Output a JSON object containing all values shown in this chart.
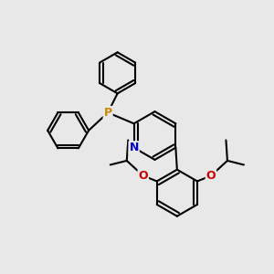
{
  "background_color": "#e8e8e8",
  "atom_colors": {
    "P": "#cc8800",
    "N": "#0000cc",
    "O": "#cc0000",
    "C": "#000000"
  },
  "bond_color": "#000000",
  "bond_width": 1.5,
  "figsize": [
    3.0,
    3.0
  ],
  "dpi": 100
}
